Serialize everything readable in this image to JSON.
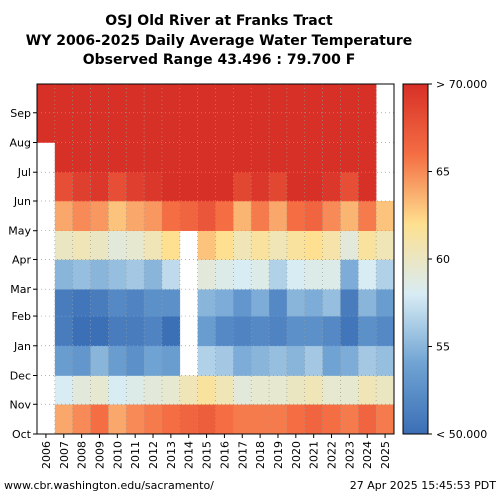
{
  "chart_data": {
    "type": "heatmap",
    "title_lines": [
      "OSJ Old River at Franks Tract",
      "WY 2006-2025 Daily Average Water Temperature",
      "Observed Range 43.496 : 79.700 F"
    ],
    "x_categories": [
      "2006",
      "2007",
      "2008",
      "2009",
      "2010",
      "2011",
      "2012",
      "2013",
      "2014",
      "2015",
      "2016",
      "2017",
      "2018",
      "2019",
      "2020",
      "2021",
      "2022",
      "2023",
      "2024",
      "2025"
    ],
    "y_labels": [
      "Oct",
      "Nov",
      "Dec",
      "Jan",
      "Feb",
      "Mar",
      "Apr",
      "May",
      "Jun",
      "Jul",
      "Aug",
      "Sep"
    ],
    "y_label_days": [
      0,
      31,
      61,
      92,
      123,
      151,
      182,
      212,
      243,
      273,
      304,
      335
    ],
    "days_in_water_year": 365,
    "colorbar": {
      "min": 50,
      "max": 70,
      "tick_values": [
        70,
        65,
        60,
        55,
        50
      ],
      "tick_labels": [
        "> 70.000",
        "65",
        "60",
        "55",
        "< 50.000"
      ],
      "colors": [
        "#3b6fb6",
        "#6fa3d3",
        "#d8ecf4",
        "#fee090",
        "#f46d43",
        "#d73027"
      ]
    },
    "monthly_mean_temperature_F": [
      [
        null,
        null,
        null,
        null,
        null,
        null,
        null,
        null,
        null,
        null,
        73.5,
        72.5
      ],
      [
        64.0,
        58.0,
        53.5,
        51.0,
        51.0,
        55.0,
        60.0,
        64.0,
        68.0,
        72.5,
        73.5,
        72.0
      ],
      [
        65.0,
        59.0,
        53.0,
        49.5,
        50.5,
        55.5,
        60.5,
        65.0,
        69.0,
        73.0,
        73.5,
        72.5
      ],
      [
        66.0,
        59.5,
        55.0,
        50.0,
        51.0,
        55.0,
        60.0,
        64.5,
        69.5,
        73.0,
        74.0,
        72.5
      ],
      [
        64.0,
        58.0,
        53.5,
        51.0,
        52.0,
        55.5,
        59.0,
        63.0,
        68.0,
        73.0,
        73.5,
        72.0
      ],
      [
        65.0,
        58.5,
        52.5,
        51.0,
        51.5,
        56.0,
        59.5,
        64.0,
        69.0,
        73.0,
        74.0,
        72.5
      ],
      [
        65.5,
        59.0,
        54.0,
        51.5,
        52.5,
        55.0,
        60.5,
        64.5,
        69.5,
        73.5,
        74.0,
        72.5
      ],
      [
        66.0,
        59.5,
        53.5,
        49.5,
        52.5,
        57.0,
        62.0,
        66.0,
        70.0,
        73.5,
        74.0,
        72.0
      ],
      [
        66.5,
        60.5,
        null,
        null,
        null,
        null,
        null,
        66.5,
        70.5,
        74.0,
        74.5,
        73.0
      ],
      [
        67.0,
        61.5,
        56.5,
        53.5,
        55.0,
        59.0,
        63.0,
        67.5,
        71.0,
        74.0,
        74.5,
        73.5
      ],
      [
        66.0,
        60.5,
        56.0,
        52.0,
        54.5,
        58.5,
        62.0,
        66.0,
        70.0,
        73.5,
        74.0,
        72.5
      ],
      [
        65.5,
        59.0,
        54.5,
        51.5,
        53.0,
        58.0,
        60.5,
        63.5,
        68.5,
        73.0,
        74.0,
        72.5
      ],
      [
        65.5,
        59.5,
        55.0,
        52.0,
        54.5,
        58.5,
        61.5,
        65.5,
        69.5,
        73.5,
        74.0,
        72.5
      ],
      [
        65.5,
        59.5,
        55.5,
        51.5,
        52.0,
        56.5,
        60.5,
        64.0,
        68.5,
        73.0,
        74.0,
        72.5
      ],
      [
        66.0,
        60.0,
        55.0,
        52.5,
        55.0,
        58.0,
        61.5,
        66.0,
        70.0,
        73.5,
        74.0,
        72.5
      ],
      [
        66.5,
        60.5,
        56.0,
        52.5,
        54.5,
        58.5,
        62.0,
        66.5,
        70.5,
        74.0,
        74.5,
        73.0
      ],
      [
        66.0,
        59.5,
        54.0,
        52.0,
        55.5,
        58.5,
        61.0,
        65.0,
        69.5,
        73.5,
        74.0,
        72.5
      ],
      [
        65.5,
        59.5,
        54.5,
        50.5,
        51.0,
        54.5,
        59.0,
        63.5,
        68.0,
        73.0,
        74.0,
        72.5
      ],
      [
        66.5,
        60.5,
        56.0,
        52.5,
        55.0,
        58.0,
        61.5,
        65.5,
        70.0,
        73.5,
        74.0,
        72.5
      ],
      [
        65.5,
        60.0,
        55.5,
        52.0,
        53.5,
        56.5,
        60.5,
        63.0,
        null,
        null,
        null,
        null
      ]
    ]
  },
  "footer": {
    "left": "www.cbr.washington.edu/sacramento/",
    "right": "27 Apr 2025 15:45:53 PDT"
  }
}
